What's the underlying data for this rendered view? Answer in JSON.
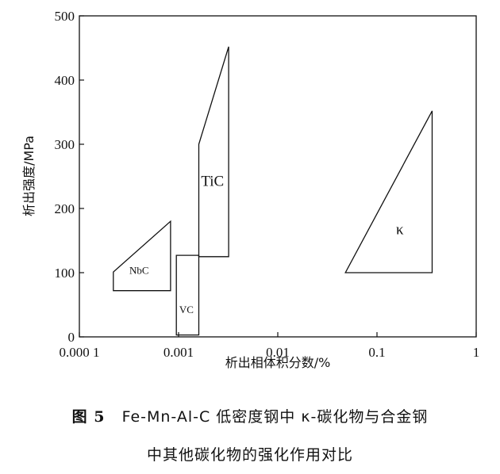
{
  "chart_data": {
    "type": "area",
    "title": "",
    "xlabel": "析出相体积分数/%",
    "ylabel": "析出强度/MPa",
    "x_scale": "log",
    "xlim": [
      0.0001,
      1
    ],
    "ylim": [
      0,
      500
    ],
    "x_ticks": [
      {
        "value": 0.0001,
        "label": "0.000 1"
      },
      {
        "value": 0.001,
        "label": "0.001"
      },
      {
        "value": 0.01,
        "label": "0.01"
      },
      {
        "value": 0.1,
        "label": "0.1"
      },
      {
        "value": 1,
        "label": "1"
      }
    ],
    "y_ticks": [
      {
        "value": 0,
        "label": "0"
      },
      {
        "value": 100,
        "label": "100"
      },
      {
        "value": 200,
        "label": "200"
      },
      {
        "value": 300,
        "label": "300"
      },
      {
        "value": 400,
        "label": "400"
      },
      {
        "value": 500,
        "label": "500"
      }
    ],
    "grid": false,
    "regions": [
      {
        "name": "NbC",
        "label": "NbC",
        "label_at": [
          0.0004,
          98
        ],
        "points": [
          [
            0.00022,
            72
          ],
          [
            0.00083,
            72
          ],
          [
            0.00083,
            180
          ],
          [
            0.00022,
            101
          ]
        ]
      },
      {
        "name": "VC",
        "label": "VC",
        "label_at": [
          0.0012,
          37
        ],
        "points": [
          [
            0.00095,
            3
          ],
          [
            0.0016,
            3
          ],
          [
            0.0016,
            127
          ],
          [
            0.00095,
            127
          ]
        ]
      },
      {
        "name": "TiC",
        "label": "TiC",
        "label_at": [
          0.0022,
          235
        ],
        "points": [
          [
            0.0016,
            125
          ],
          [
            0.0032,
            125
          ],
          [
            0.0032,
            452
          ],
          [
            0.0016,
            300
          ]
        ]
      },
      {
        "name": "κ",
        "label": "κ",
        "label_at": [
          0.17,
          160
        ],
        "points": [
          [
            0.048,
            100
          ],
          [
            0.36,
            100
          ],
          [
            0.36,
            352
          ]
        ]
      }
    ]
  },
  "caption": {
    "line1_fig": "图 5",
    "line1_text": "Fe-Mn-Al-C 低密度钢中 κ-碳化物与合金钢",
    "line2": "中其他碳化物的强化作用对比"
  }
}
